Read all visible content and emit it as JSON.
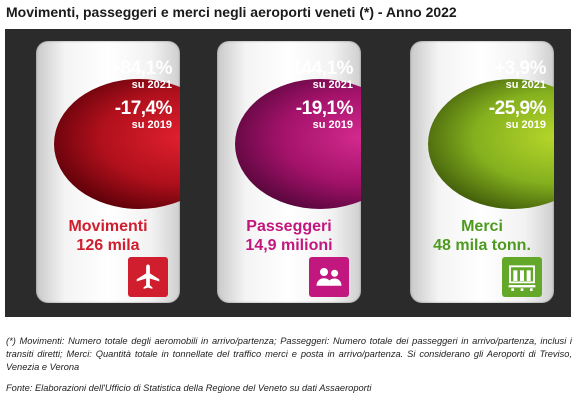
{
  "title": "Movimenti, passeggeri e merci negli aeroporti veneti (*) - Anno 2022",
  "cards": [
    {
      "change_2021": "+84,1%",
      "label_2021": "su 2021",
      "change_2019": "-17,4%",
      "label_2019": "su 2019",
      "name": "Movimenti",
      "value": "126 mila",
      "icon": "airplane-icon",
      "color": "#d01e2e"
    },
    {
      "change_2021": "+144,1%",
      "label_2021": "su 2021",
      "change_2019": "-19,1%",
      "label_2019": "su 2019",
      "name": "Passeggeri",
      "value": "14,9 milioni",
      "icon": "people-icon",
      "color": "#c2177e"
    },
    {
      "change_2021": "+3,9%",
      "label_2021": "su 2021",
      "change_2019": "-25,9%",
      "label_2019": "su 2019",
      "name": "Merci",
      "value": "48 mila tonn.",
      "icon": "warehouse-icon",
      "color": "#64a82a"
    }
  ],
  "note": "(*) Movimenti: Numero totale degli aeromobili in arrivo/partenza; Passeggeri: Numero totale dei passeggeri in arrivo/partenza, inclusi i transiti diretti; Merci: Quantità totale in tonnellate del traffico merci e posta in arrivo/partenza. Si considerano gli Aeroporti di Treviso, Venezia e Verona",
  "source": "Fonte: Elaborazioni dell'Ufficio di Statistica della Regione del Veneto su dati Assaeroporti"
}
